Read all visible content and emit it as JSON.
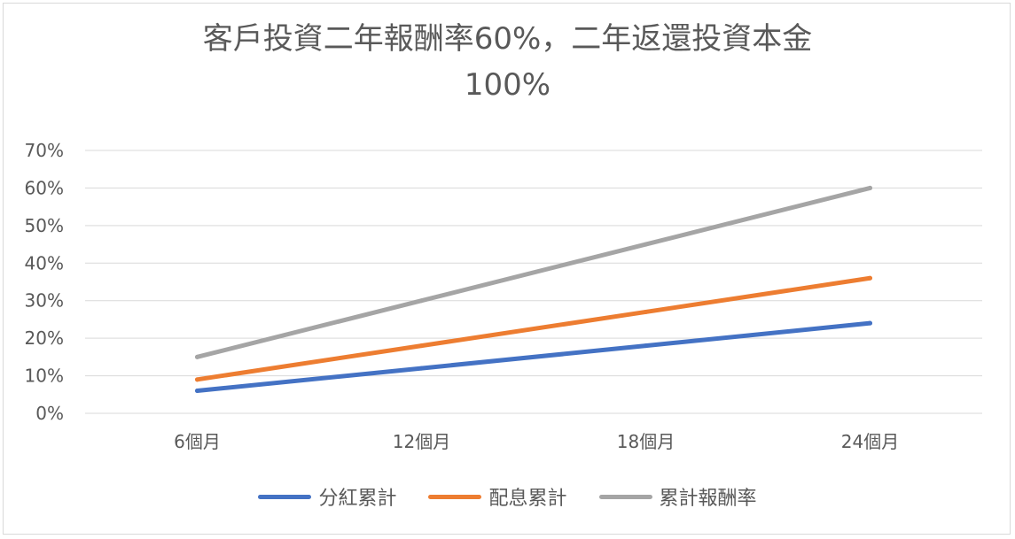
{
  "chart_data": {
    "type": "line",
    "title": "客戶投資二年報酬率60%，二年返還投資本金 100%",
    "title_lines": [
      "客戶投資二年報酬率60%，二年返還投資本金",
      "100%"
    ],
    "categories": [
      "6個月",
      "12個月",
      "18個月",
      "24個月"
    ],
    "y_ticks": [
      "0%",
      "10%",
      "20%",
      "30%",
      "40%",
      "50%",
      "60%",
      "70%"
    ],
    "ylim": [
      0,
      70
    ],
    "grid": true,
    "legend_position": "bottom",
    "series": [
      {
        "name": "分紅累計",
        "color": "#4472c4",
        "values": [
          6,
          12,
          18,
          24
        ]
      },
      {
        "name": "配息累計",
        "color": "#ed7d31",
        "values": [
          9,
          18,
          27,
          36
        ]
      },
      {
        "name": "累計報酬率",
        "color": "#a5a5a5",
        "values": [
          15,
          30,
          45,
          60
        ]
      }
    ]
  }
}
